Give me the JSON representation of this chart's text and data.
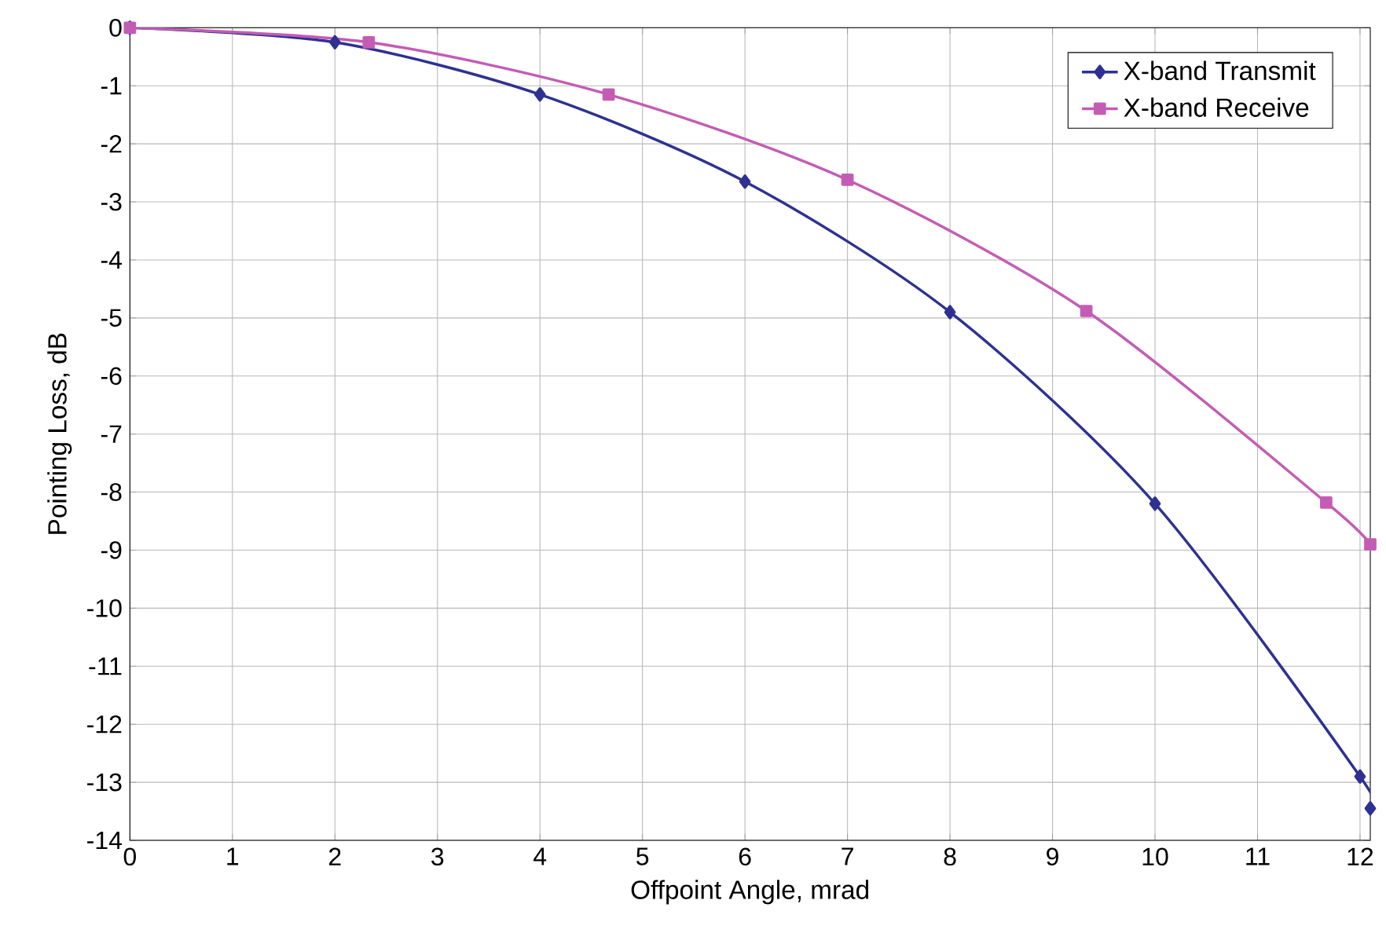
{
  "chart_data": {
    "type": "line",
    "xlabel": "Offpoint Angle, mrad",
    "ylabel": "Pointing Loss, dB",
    "xlim": [
      0,
      12.1
    ],
    "ylim": [
      -14,
      0
    ],
    "xticks": [
      0,
      1,
      2,
      3,
      4,
      5,
      6,
      7,
      8,
      9,
      10,
      11,
      12
    ],
    "yticks": [
      0,
      -1,
      -2,
      -3,
      -4,
      -5,
      -6,
      -7,
      -8,
      -9,
      -10,
      -11,
      -12,
      -13,
      -14
    ],
    "grid": true,
    "legend": "top right",
    "series": [
      {
        "name": "X-band Transmit",
        "color": "#2e3192",
        "marker": "diamond",
        "x": [
          0,
          2,
          4,
          6,
          8,
          10,
          12,
          12.1
        ],
        "values": [
          0,
          -0.25,
          -1.15,
          -2.65,
          -4.9,
          -8.2,
          -12.9,
          -13.45
        ]
      },
      {
        "name": "X-band Receive",
        "color": "#c45cb4",
        "marker": "square",
        "x": [
          0,
          2.33,
          4.67,
          7,
          9.33,
          11.67,
          12.1
        ],
        "values": [
          0,
          -0.25,
          -1.15,
          -2.62,
          -4.88,
          -8.18,
          -8.9
        ]
      }
    ]
  }
}
